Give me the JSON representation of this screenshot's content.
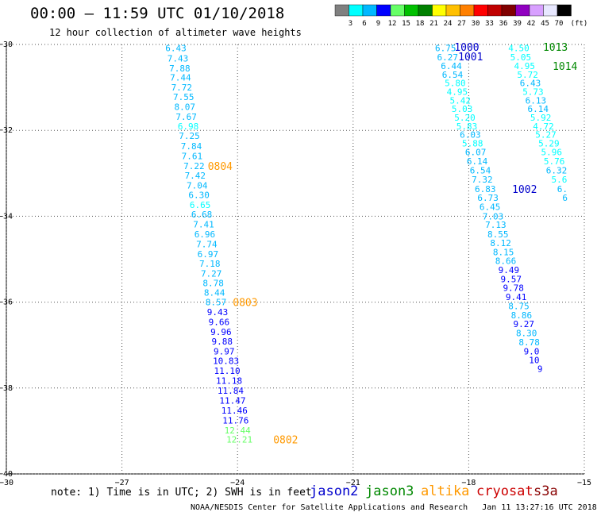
{
  "title": "00:00 – 11:59 UTC 01/10/2018",
  "subtitle": "12 hour collection of altimeter wave heights",
  "colorbar": {
    "labels": [
      "3",
      "6",
      "9",
      "12",
      "15",
      "18",
      "21",
      "24",
      "27",
      "30",
      "33",
      "36",
      "39",
      "42",
      "45",
      "70"
    ],
    "unit": "(ft)",
    "colors": [
      "#808080",
      "#00ffff",
      "#00b8ff",
      "#0000ff",
      "#66ff66",
      "#00c000",
      "#008000",
      "#ffff00",
      "#ffc000",
      "#ff8000",
      "#ff0000",
      "#c00000",
      "#800000",
      "#9000c0",
      "#d8a0ff",
      "#e8e8ff",
      "#000000"
    ]
  },
  "note": "note: 1) Time is in UTC; 2) SWH is in feet",
  "footer": "NOAA/NESDIS Center for Satellite Applications and Research   Jan 11 13:27:16 UTC 2018",
  "legend": [
    {
      "name": "jason2",
      "color": "#0000cc"
    },
    {
      "name": "jason3",
      "color": "#008800"
    },
    {
      "name": "altika",
      "color": "#ff9900"
    },
    {
      "name": "cryosat",
      "color": "#cc0000"
    },
    {
      "name": "s3a",
      "color": "#880000"
    }
  ],
  "chart_data": {
    "type": "scatter",
    "xlim": [
      -30,
      -15
    ],
    "ylim": [
      -40,
      -30
    ],
    "xticks": [
      -30,
      -27,
      -24,
      -21,
      -18,
      -15
    ],
    "yticks": [
      -30,
      -32,
      -34,
      -36,
      -38,
      -40
    ],
    "grid": true,
    "tracks": [
      {
        "values": [
          {
            "v": "6.43",
            "lon": -25.6,
            "lat": -30.08,
            "c": "#00b8ff"
          },
          {
            "v": "7.43",
            "lon": -25.55,
            "lat": -30.32,
            "c": "#00b8ff"
          },
          {
            "v": "7.88",
            "lon": -25.5,
            "lat": -30.55,
            "c": "#00b8ff"
          },
          {
            "v": "7.44",
            "lon": -25.48,
            "lat": -30.77,
            "c": "#00b8ff"
          },
          {
            "v": "7.72",
            "lon": -25.45,
            "lat": -31.0,
            "c": "#00b8ff"
          },
          {
            "v": "7.55",
            "lon": -25.4,
            "lat": -31.22,
            "c": "#00b8ff"
          },
          {
            "v": "8.07",
            "lon": -25.37,
            "lat": -31.45,
            "c": "#00b8ff"
          },
          {
            "v": "7.67",
            "lon": -25.33,
            "lat": -31.68,
            "c": "#00b8ff"
          },
          {
            "v": "6.98",
            "lon": -25.28,
            "lat": -31.9,
            "c": "#00ffff"
          },
          {
            "v": "7.25",
            "lon": -25.25,
            "lat": -32.13,
            "c": "#00b8ff"
          },
          {
            "v": "7.84",
            "lon": -25.2,
            "lat": -32.37,
            "c": "#00b8ff"
          },
          {
            "v": "7.61",
            "lon": -25.18,
            "lat": -32.6,
            "c": "#00b8ff"
          },
          {
            "v": "7.22",
            "lon": -25.13,
            "lat": -32.83,
            "c": "#00b8ff"
          },
          {
            "v": "7.42",
            "lon": -25.1,
            "lat": -33.05,
            "c": "#00b8ff"
          },
          {
            "v": "7.04",
            "lon": -25.05,
            "lat": -33.28,
            "c": "#00b8ff"
          },
          {
            "v": "6.30",
            "lon": -25.0,
            "lat": -33.5,
            "c": "#00b8ff"
          },
          {
            "v": "6.65",
            "lon": -24.97,
            "lat": -33.73,
            "c": "#00ffff"
          },
          {
            "v": "6.68",
            "lon": -24.93,
            "lat": -33.96,
            "c": "#00b8ff"
          },
          {
            "v": "7.41",
            "lon": -24.88,
            "lat": -34.19,
            "c": "#00b8ff"
          },
          {
            "v": "6.96",
            "lon": -24.85,
            "lat": -34.42,
            "c": "#00b8ff"
          },
          {
            "v": "7.74",
            "lon": -24.8,
            "lat": -34.65,
            "c": "#00b8ff"
          },
          {
            "v": "6.97",
            "lon": -24.77,
            "lat": -34.88,
            "c": "#00b8ff"
          },
          {
            "v": "7.18",
            "lon": -24.72,
            "lat": -35.1,
            "c": "#00b8ff"
          },
          {
            "v": "7.27",
            "lon": -24.68,
            "lat": -35.33,
            "c": "#00b8ff"
          },
          {
            "v": "8.78",
            "lon": -24.63,
            "lat": -35.55,
            "c": "#00b8ff"
          },
          {
            "v": "8.44",
            "lon": -24.6,
            "lat": -35.78,
            "c": "#00b8ff"
          },
          {
            "v": "8.57",
            "lon": -24.56,
            "lat": -36.0,
            "c": "#00b8ff"
          },
          {
            "v": "9.43",
            "lon": -24.52,
            "lat": -36.23,
            "c": "#0000ff"
          },
          {
            "v": "9.66",
            "lon": -24.48,
            "lat": -36.46,
            "c": "#0000ff"
          },
          {
            "v": "9.96",
            "lon": -24.43,
            "lat": -36.69,
            "c": "#0000ff"
          },
          {
            "v": "9.88",
            "lon": -24.4,
            "lat": -36.91,
            "c": "#0000ff"
          },
          {
            "v": "9.97",
            "lon": -24.35,
            "lat": -37.14,
            "c": "#0000ff"
          },
          {
            "v": "10.83",
            "lon": -24.3,
            "lat": -37.37,
            "c": "#0000ff"
          },
          {
            "v": "11.10",
            "lon": -24.27,
            "lat": -37.6,
            "c": "#0000ff"
          },
          {
            "v": "11.18",
            "lon": -24.22,
            "lat": -37.83,
            "c": "#0000ff"
          },
          {
            "v": "11.84",
            "lon": -24.18,
            "lat": -38.06,
            "c": "#0000ff"
          },
          {
            "v": "11.47",
            "lon": -24.13,
            "lat": -38.29,
            "c": "#0000ff"
          },
          {
            "v": "11.46",
            "lon": -24.08,
            "lat": -38.52,
            "c": "#0000ff"
          },
          {
            "v": "11.76",
            "lon": -24.05,
            "lat": -38.75,
            "c": "#0000ff"
          },
          {
            "v": "12.44",
            "lon": -24.0,
            "lat": -38.98,
            "c": "#66ff66"
          },
          {
            "v": "12.21",
            "lon": -23.95,
            "lat": -39.2,
            "c": "#66ff66"
          }
        ]
      },
      {
        "values": [
          {
            "v": "6.75",
            "lon": -18.6,
            "lat": -30.08,
            "c": "#00b8ff"
          },
          {
            "v": "6.27",
            "lon": -18.55,
            "lat": -30.3,
            "c": "#00b8ff"
          },
          {
            "v": "6.44",
            "lon": -18.45,
            "lat": -30.5,
            "c": "#00b8ff"
          },
          {
            "v": "6.54",
            "lon": -18.42,
            "lat": -30.7,
            "c": "#00b8ff"
          },
          {
            "v": "5.80",
            "lon": -18.35,
            "lat": -30.9,
            "c": "#00ffff"
          },
          {
            "v": "4.95",
            "lon": -18.3,
            "lat": -31.1,
            "c": "#00ffff"
          },
          {
            "v": "5.42",
            "lon": -18.22,
            "lat": -31.3,
            "c": "#00ffff"
          },
          {
            "v": "5.03",
            "lon": -18.17,
            "lat": -31.5,
            "c": "#00ffff"
          },
          {
            "v": "5.20",
            "lon": -18.1,
            "lat": -31.7,
            "c": "#00ffff"
          },
          {
            "v": "5.83",
            "lon": -18.05,
            "lat": -31.9,
            "c": "#00ffff"
          },
          {
            "v": "6.03",
            "lon": -17.96,
            "lat": -32.1,
            "c": "#00b8ff"
          },
          {
            "v": "5.88",
            "lon": -17.9,
            "lat": -32.3,
            "c": "#00ffff"
          },
          {
            "v": "6.07",
            "lon": -17.82,
            "lat": -32.5,
            "c": "#00b8ff"
          },
          {
            "v": "6.14",
            "lon": -17.78,
            "lat": -32.72,
            "c": "#00b8ff"
          },
          {
            "v": "6.54",
            "lon": -17.7,
            "lat": -32.93,
            "c": "#00b8ff"
          },
          {
            "v": "7.32",
            "lon": -17.65,
            "lat": -33.14,
            "c": "#00b8ff"
          },
          {
            "v": "6.83",
            "lon": -17.57,
            "lat": -33.36,
            "c": "#00b8ff"
          },
          {
            "v": "6.73",
            "lon": -17.5,
            "lat": -33.57,
            "c": "#00b8ff"
          },
          {
            "v": "6.45",
            "lon": -17.45,
            "lat": -33.78,
            "c": "#00b8ff"
          },
          {
            "v": "7.03",
            "lon": -17.37,
            "lat": -34.0,
            "c": "#00b8ff"
          },
          {
            "v": "7.13",
            "lon": -17.3,
            "lat": -34.2,
            "c": "#00b8ff"
          },
          {
            "v": "8.55",
            "lon": -17.24,
            "lat": -34.42,
            "c": "#00b8ff"
          },
          {
            "v": "8.12",
            "lon": -17.17,
            "lat": -34.62,
            "c": "#00b8ff"
          },
          {
            "v": "8.15",
            "lon": -17.1,
            "lat": -34.83,
            "c": "#00b8ff"
          },
          {
            "v": "8.66",
            "lon": -17.04,
            "lat": -35.04,
            "c": "#00b8ff"
          },
          {
            "v": "9.49",
            "lon": -16.96,
            "lat": -35.25,
            "c": "#0000ff"
          },
          {
            "v": "9.57",
            "lon": -16.9,
            "lat": -35.46,
            "c": "#0000ff"
          },
          {
            "v": "9.78",
            "lon": -16.84,
            "lat": -35.67,
            "c": "#0000ff"
          },
          {
            "v": "9.41",
            "lon": -16.77,
            "lat": -35.88,
            "c": "#0000ff"
          },
          {
            "v": "8.75",
            "lon": -16.7,
            "lat": -36.09,
            "c": "#00b8ff"
          },
          {
            "v": "8.86",
            "lon": -16.63,
            "lat": -36.3,
            "c": "#00b8ff"
          },
          {
            "v": "9.27",
            "lon": -16.57,
            "lat": -36.51,
            "c": "#0000ff"
          },
          {
            "v": "8.30",
            "lon": -16.5,
            "lat": -36.72,
            "c": "#00b8ff"
          },
          {
            "v": "8.78",
            "lon": -16.43,
            "lat": -36.93,
            "c": "#00b8ff"
          },
          {
            "v": "9.0",
            "lon": -16.37,
            "lat": -37.14,
            "c": "#0000ff"
          },
          {
            "v": "10",
            "lon": -16.3,
            "lat": -37.35,
            "c": "#0000ff"
          },
          {
            "v": "9",
            "lon": -16.15,
            "lat": -37.55,
            "c": "#0000ff"
          }
        ]
      },
      {
        "values": [
          {
            "v": "4.50",
            "lon": -16.7,
            "lat": -30.08,
            "c": "#00ffff"
          },
          {
            "v": "5.05",
            "lon": -16.65,
            "lat": -30.3,
            "c": "#00ffff"
          },
          {
            "v": "4.95",
            "lon": -16.55,
            "lat": -30.5,
            "c": "#00ffff"
          },
          {
            "v": "5.72",
            "lon": -16.47,
            "lat": -30.7,
            "c": "#00ffff"
          },
          {
            "v": "6.43",
            "lon": -16.4,
            "lat": -30.9,
            "c": "#00b8ff"
          },
          {
            "v": "5.73",
            "lon": -16.33,
            "lat": -31.1,
            "c": "#00ffff"
          },
          {
            "v": "6.13",
            "lon": -16.26,
            "lat": -31.3,
            "c": "#00b8ff"
          },
          {
            "v": "6.14",
            "lon": -16.2,
            "lat": -31.5,
            "c": "#00b8ff"
          },
          {
            "v": "5.92",
            "lon": -16.13,
            "lat": -31.7,
            "c": "#00ffff"
          },
          {
            "v": "4.72",
            "lon": -16.06,
            "lat": -31.9,
            "c": "#00ffff"
          },
          {
            "v": "5.27",
            "lon": -16.0,
            "lat": -32.1,
            "c": "#00ffff"
          },
          {
            "v": "5.29",
            "lon": -15.92,
            "lat": -32.3,
            "c": "#00ffff"
          },
          {
            "v": "5.96",
            "lon": -15.85,
            "lat": -32.5,
            "c": "#00ffff"
          },
          {
            "v": "5.76",
            "lon": -15.78,
            "lat": -32.72,
            "c": "#00ffff"
          },
          {
            "v": "6.32",
            "lon": -15.72,
            "lat": -32.93,
            "c": "#00b8ff"
          },
          {
            "v": "5.6",
            "lon": -15.65,
            "lat": -33.14,
            "c": "#00ffff"
          },
          {
            "v": "6.",
            "lon": -15.57,
            "lat": -33.36,
            "c": "#00b8ff"
          },
          {
            "v": "6",
            "lon": -15.5,
            "lat": -33.57,
            "c": "#00b8ff"
          }
        ]
      }
    ],
    "time_labels": [
      {
        "text": "0804",
        "lon": -24.45,
        "lat": -32.83,
        "c": "#ff9900"
      },
      {
        "text": "0803",
        "lon": -23.8,
        "lat": -36.0,
        "c": "#ff9900"
      },
      {
        "text": "0802",
        "lon": -22.75,
        "lat": -39.2,
        "c": "#ff9900"
      },
      {
        "text": "1000",
        "lon": -18.05,
        "lat": -30.06,
        "c": "#0000cc"
      },
      {
        "text": "1001",
        "lon": -17.95,
        "lat": -30.28,
        "c": "#0000cc"
      },
      {
        "text": "1002",
        "lon": -16.55,
        "lat": -33.36,
        "c": "#0000cc"
      },
      {
        "text": "1013",
        "lon": -15.75,
        "lat": -30.06,
        "c": "#008800"
      },
      {
        "text": "1014",
        "lon": -15.5,
        "lat": -30.5,
        "c": "#008800"
      }
    ]
  }
}
